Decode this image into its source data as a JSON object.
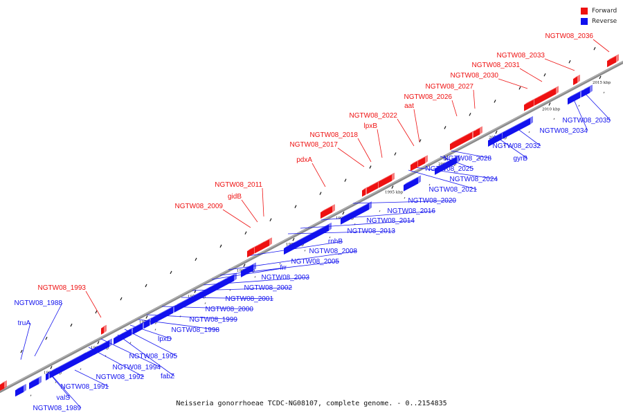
{
  "legend": {
    "forward_label": "Forward",
    "reverse_label": "Reverse",
    "forward_color": "#ee1111",
    "reverse_color": "#1111ee"
  },
  "caption": "Neisseria gonorrhoeae TCDC-NG08107, complete genome. - 0..2154835",
  "ticks": [
    "1960 kbp",
    "1965 kbp",
    "1970 kbp",
    "1975 kbp",
    "1980 kbp",
    "1985 kbp",
    "1990 kbp",
    "1995 kbp",
    "2000 kbp",
    "2005 kbp",
    "2010 kbp",
    "2015 kbp"
  ],
  "forward_genes": [
    "NGTW08_1993",
    "NGTW08_2009",
    "gidB",
    "NGTW08_2011",
    "pdxA",
    "NGTW08_2017",
    "NGTW08_2018",
    "lpxB",
    "NGTW08_2022",
    "aat",
    "NGTW08_2026",
    "NGTW08_2027",
    "NGTW08_2030",
    "NGTW08_2031",
    "NGTW08_2033",
    "NGTW08_2036"
  ],
  "reverse_genes": [
    "truA",
    "NGTW08_1988",
    "valS",
    "NGTW08_1989",
    "NGTW08_1991",
    "NGTW08_1992",
    "NGTW08_1994",
    "fabZ",
    "NGTW08_1995",
    "lpxD",
    "NGTW08_1998",
    "NGTW08_1999",
    "NGTW08_2000",
    "NGTW08_2001",
    "NGTW08_2002",
    "NGTW08_2003",
    "frr",
    "NGTW08_2005",
    "NGTW08_2008",
    "rnhB",
    "NGTW08_2013",
    "NGTW08_2014",
    "NGTW08_2016",
    "NGTW08_2020",
    "NGTW08_2021",
    "NGTW08_2024",
    "NGTW08_2025",
    "NGTW08_2028",
    "gyrB",
    "NGTW08_2032",
    "NGTW08_2034",
    "NGTW08_2035"
  ]
}
